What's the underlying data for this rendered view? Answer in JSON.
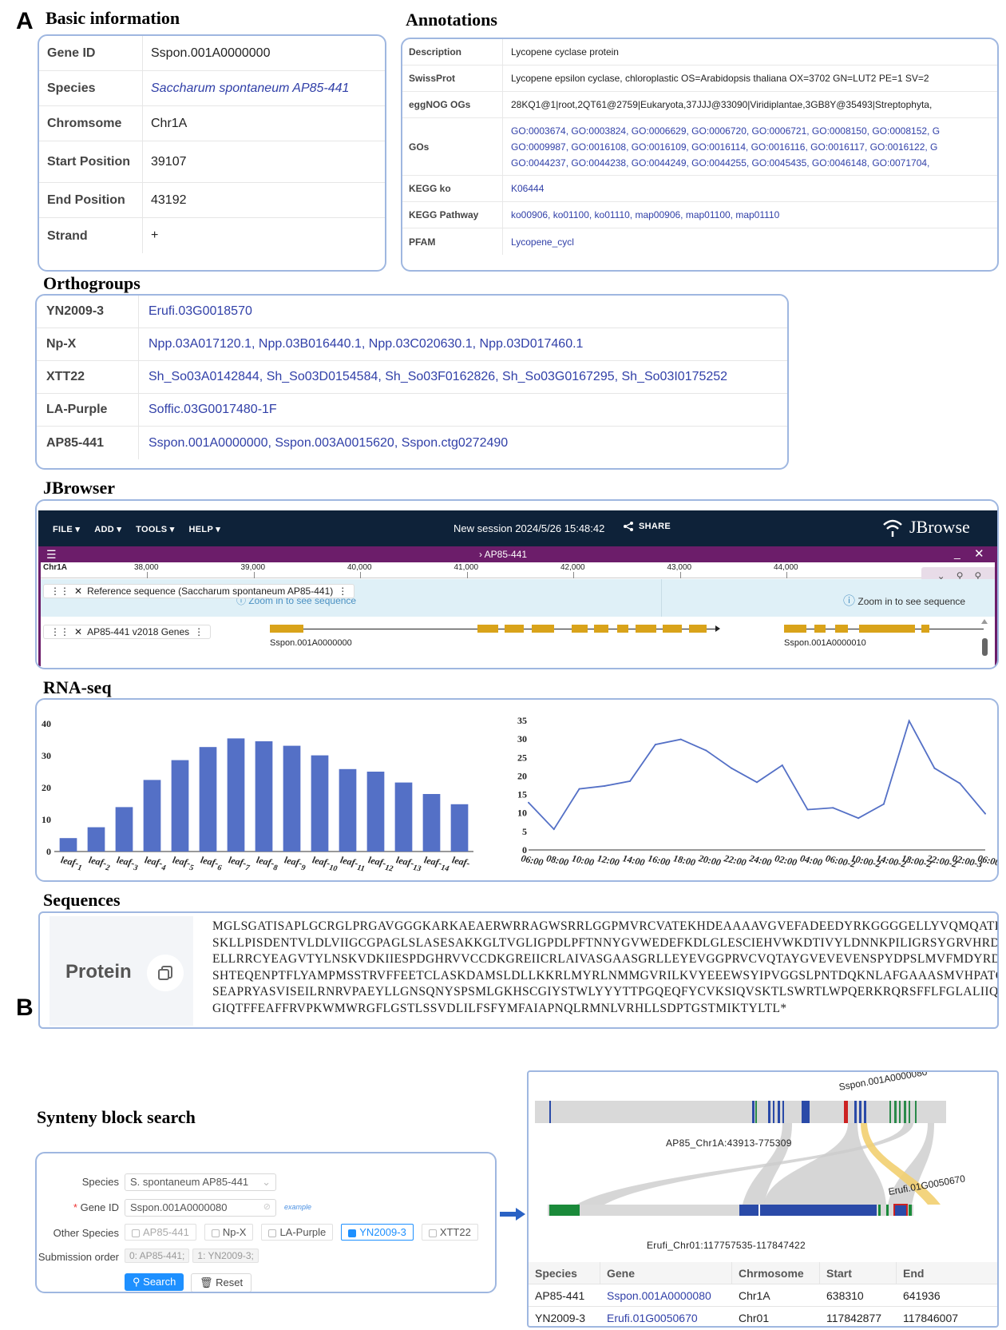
{
  "panel_a": "A",
  "panel_b": "B",
  "basic": {
    "title": "Basic information",
    "rows": [
      {
        "key": "Gene ID",
        "value": "Sspon.001A0000000"
      },
      {
        "key": "Species",
        "value": "Saccharum spontaneum AP85-441"
      },
      {
        "key": "Chromsome",
        "value": "Chr1A"
      },
      {
        "key": "Start Position",
        "value": "39107"
      },
      {
        "key": "End Position",
        "value": "43192"
      },
      {
        "key": "Strand",
        "value": "+"
      }
    ]
  },
  "annotations": {
    "title": "Annotations",
    "rows": [
      {
        "key": "Description",
        "lines": [
          "Lycopene cyclase protein"
        ],
        "link": false
      },
      {
        "key": "SwissProt",
        "lines": [
          "Lycopene epsilon cyclase, chloroplastic OS=Arabidopsis thaliana OX=3702 GN=LUT2 PE=1 SV=2"
        ],
        "link": false
      },
      {
        "key": "eggNOG OGs",
        "lines": [
          "28KQ1@1|root,2QT61@2759|Eukaryota,37JJJ@33090|Viridiplantae,3GB8Y@35493|Streptophyta,"
        ],
        "link": false
      },
      {
        "key": "GOs",
        "lines": [
          "GO:0003674, GO:0003824, GO:0006629, GO:0006720, GO:0006721, GO:0008150, GO:0008152, G",
          "GO:0009987, GO:0016108, GO:0016109, GO:0016114, GO:0016116, GO:0016117, GO:0016122, G",
          "GO:0044237, GO:0044238, GO:0044249, GO:0044255, GO:0045435, GO:0046148, GO:0071704,"
        ],
        "link": true
      },
      {
        "key": "KEGG ko",
        "lines": [
          "K06444"
        ],
        "link": true
      },
      {
        "key": "KEGG Pathway",
        "lines": [
          "ko00906, ko01100, ko01110, map00906, map01100, map01110"
        ],
        "link": true
      },
      {
        "key": "PFAM",
        "lines": [
          "Lycopene_cycl"
        ],
        "link": true
      }
    ]
  },
  "orthogroups": {
    "title": "Orthogroups",
    "rows": [
      {
        "key": "YN2009-3",
        "value": "Erufi.03G0018570"
      },
      {
        "key": "Np-X",
        "value": "Npp.03A017120.1, Npp.03B016440.1, Npp.03C020630.1, Npp.03D017460.1"
      },
      {
        "key": "XTT22",
        "value": "Sh_So03A0142844, Sh_So03D0154584, Sh_So03F0162826, Sh_So03G0167295, Sh_So03I0175252"
      },
      {
        "key": "LA-Purple",
        "value": "Soffic.03G0017480-1F"
      },
      {
        "key": "AP85-441",
        "value": "Sspon.001A0000000, Sspon.003A0015620, Sspon.ctg0272490"
      }
    ]
  },
  "jbrowser": {
    "title": "JBrowser",
    "menus": [
      "FILE",
      "ADD",
      "TOOLS",
      "HELP"
    ],
    "session": "New session 2024/5/26 15:48:42",
    "share": "SHARE",
    "brand": "JBrowse",
    "view_name": "AP85-441",
    "chrom": "Chr1A",
    "ruler": [
      "38,000",
      "39,000",
      "40,000",
      "41,000",
      "42,000",
      "43,000",
      "44,000"
    ],
    "ref_track": "Reference sequence (Saccharum spontaneum AP85-441)",
    "zoom_hint": "Zoom in to see sequence",
    "zoom_hint_left": "Zoom in to see sequence",
    "gene_track": "AP85-441 v2018 Genes",
    "gene1": "Sspon.001A0000000",
    "gene2": "Sspon.001A0000010"
  },
  "rnaseq": {
    "title": "RNA-seq"
  },
  "chart_data": [
    {
      "type": "bar",
      "categories": [
        "leaf-1",
        "leaf-2",
        "leaf-3",
        "leaf-4",
        "leaf-5",
        "leaf-6",
        "leaf-7",
        "leaf-8",
        "leaf-9",
        "leaf-10",
        "leaf-11",
        "leaf-12",
        "leaf-13",
        "leaf-14",
        "leaf-"
      ],
      "values": [
        4.2,
        7.6,
        13.9,
        22.4,
        28.6,
        32.7,
        35.4,
        34.5,
        33.1,
        30.1,
        25.8,
        25.0,
        21.6,
        18.0,
        14.8
      ],
      "ylim": [
        0,
        40
      ],
      "yticks": [
        "0",
        "10",
        "20",
        "30",
        "40"
      ],
      "color": "#5470c6"
    },
    {
      "type": "line",
      "categories": [
        "06:00",
        "08:00",
        "10:00",
        "12:00",
        "14:00",
        "16:00",
        "18:00",
        "20:00",
        "22:00",
        "24:00",
        "02:00",
        "04:00",
        "06:00-2",
        "10:00-2",
        "14:00-2",
        "18:00-2",
        "22:00-2",
        "02:00-3",
        "06:00-3"
      ],
      "values": [
        12.8,
        5.6,
        16.5,
        17.3,
        18.6,
        28.5,
        29.9,
        26.9,
        22.1,
        18.3,
        22.9,
        10.9,
        11.4,
        8.6,
        12.4,
        34.9,
        22.1,
        18.0,
        9.8
      ],
      "ylim": [
        0,
        35
      ],
      "yticks": [
        "0",
        "5",
        "10",
        "15",
        "20",
        "25",
        "30",
        "35"
      ],
      "color": "#5470c6"
    }
  ],
  "sequences": {
    "title": "Sequences",
    "label": "Protein",
    "lines": [
      "MGLSGATISAPLGCRGLPRGAVGGGKARKAEAERWRRAGWSRRLGGPMVRCVATEKHDEAAAAVGVEFADEEDYRKGGGGELLYVQMQATKPMESQSKIA",
      "SKLLPISDENTVLDLVIIGCGPAGLSLASESAKKGLTVGLIGPDLPFTNNYGVWEDEFKDLGLESCIEHVWKDTIVYLDNNKPILIGRSYGRVHRDLLHE",
      "ELLRRCYEAGVTYLNSKVDKIIESPDGHRVVCCDKGREIICRLAIVASGAASGRLLEYEVGGPRVCVQTAYGVEVEVENSPYDPSLMVFMDYRDCFKEEF",
      "SHTEQENPTFLYAMPMSSTRVFFEETCLASKDAMSLDLLKKRLMYRLNMMGVRILKVYEEEWSYIPVGGSLPNTDQKNLAFGAAASMVHPATGYSVVRSL",
      "SEAPRYASVISEILRNRVPAEYLLGNSQNYSPSMLGKHSCGIYSTWLYYYTTPGQEQFYCVKSIQVSKTLSWRTLWPQERKRQRSFFLFGLALIIQLNNE",
      "GIQTFFEAFFRVPKWMWRGFLGSTLSSVDLILFSFYMFAIAPNQLRMNLVRHLLSDPTGSTMIKTYLTL*"
    ]
  },
  "synteny": {
    "title": "Synteny block search",
    "species_label": "Species",
    "species_value": "S. spontaneum AP85-441",
    "geneid_label": "Gene ID",
    "geneid_value": "Sspon.001A0000080",
    "example": "example",
    "other_label": "Other Species",
    "other_options": [
      "AP85-441",
      "Np-X",
      "LA-Purple",
      "YN2009-3",
      "XTT22"
    ],
    "order_label": "Submission order",
    "order_tags": [
      "0:  AP85-441;",
      "1:  YN2009-3;"
    ],
    "search": "Search",
    "reset": "Reset",
    "top_chrom": "AP85_Chr1A:43913-775309",
    "bottom_chrom": "Erufi_Chr01:117757535-117847422",
    "top_gene": "Sspon.001A0000080",
    "bottom_gene": "Erufi.01G0050670",
    "table_headers": [
      "Species",
      "Gene",
      "Chrmosome",
      "Start",
      "End"
    ],
    "table_rows": [
      [
        "AP85-441",
        "Sspon.001A0000080",
        "Chr1A",
        "638310",
        "641936"
      ],
      [
        "YN2009-3",
        "Erufi.01G0050670",
        "Chr01",
        "117842877",
        "117846007"
      ]
    ]
  }
}
